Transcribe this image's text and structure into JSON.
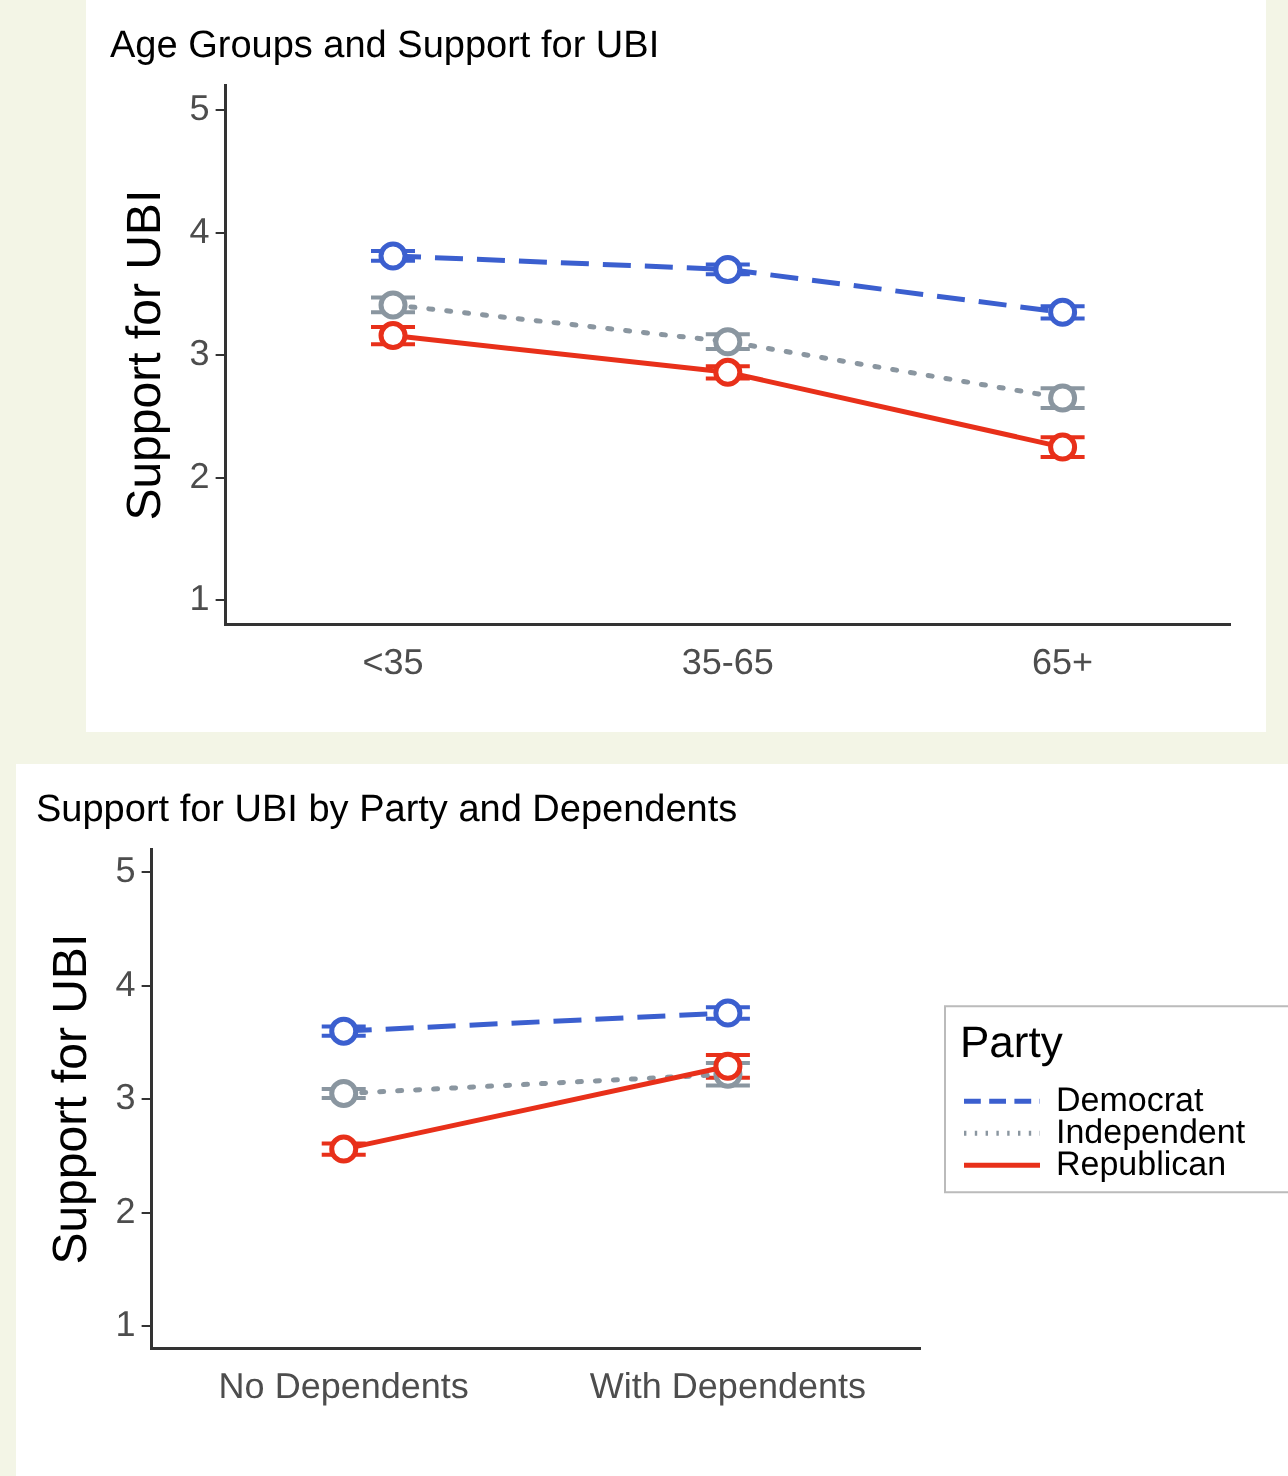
{
  "chart_data": [
    {
      "type": "line",
      "title": "Age Groups and Support for UBI",
      "ylabel": "Support for UBI",
      "categories": [
        "<35",
        "35-65",
        "65+"
      ],
      "ylim": [
        0.8,
        5.2
      ],
      "yticks": [
        1,
        2,
        3,
        4,
        5
      ],
      "grid": false,
      "legend": false,
      "marker": "circle",
      "series": [
        {
          "color": "#3b5fcf",
          "line_style": "dashed",
          "values": [
            3.81,
            3.7,
            3.35
          ],
          "errors": [
            0.04,
            0.04,
            0.05
          ]
        },
        {
          "color": "#8a96a0",
          "line_style": "dotted",
          "values": [
            3.41,
            3.11,
            2.65
          ],
          "errors": [
            0.06,
            0.06,
            0.08
          ]
        },
        {
          "color": "#e8301a",
          "line_style": "solid",
          "values": [
            3.16,
            2.86,
            2.25
          ],
          "errors": [
            0.07,
            0.05,
            0.08
          ]
        }
      ]
    },
    {
      "type": "line",
      "title": "Support for UBI by Party and Dependents",
      "ylabel": "Support for UBI",
      "legend_title": "Party",
      "categories": [
        "No Dependents",
        "With Dependents"
      ],
      "ylim": [
        0.8,
        5.2
      ],
      "yticks": [
        1,
        2,
        3,
        4,
        5
      ],
      "grid": false,
      "legend": "right",
      "marker": "circle",
      "series": [
        {
          "name": "Democrat",
          "color": "#3b5fcf",
          "line_style": "dashed",
          "values": [
            3.6,
            3.76
          ],
          "errors": [
            0.04,
            0.05
          ]
        },
        {
          "name": "Independent",
          "color": "#8a96a0",
          "line_style": "dotted",
          "values": [
            3.05,
            3.22
          ],
          "errors": [
            0.04,
            0.1
          ]
        },
        {
          "name": "Republican",
          "color": "#e8301a",
          "line_style": "solid",
          "values": [
            2.56,
            3.29
          ],
          "errors": [
            0.05,
            0.1
          ]
        }
      ]
    }
  ]
}
